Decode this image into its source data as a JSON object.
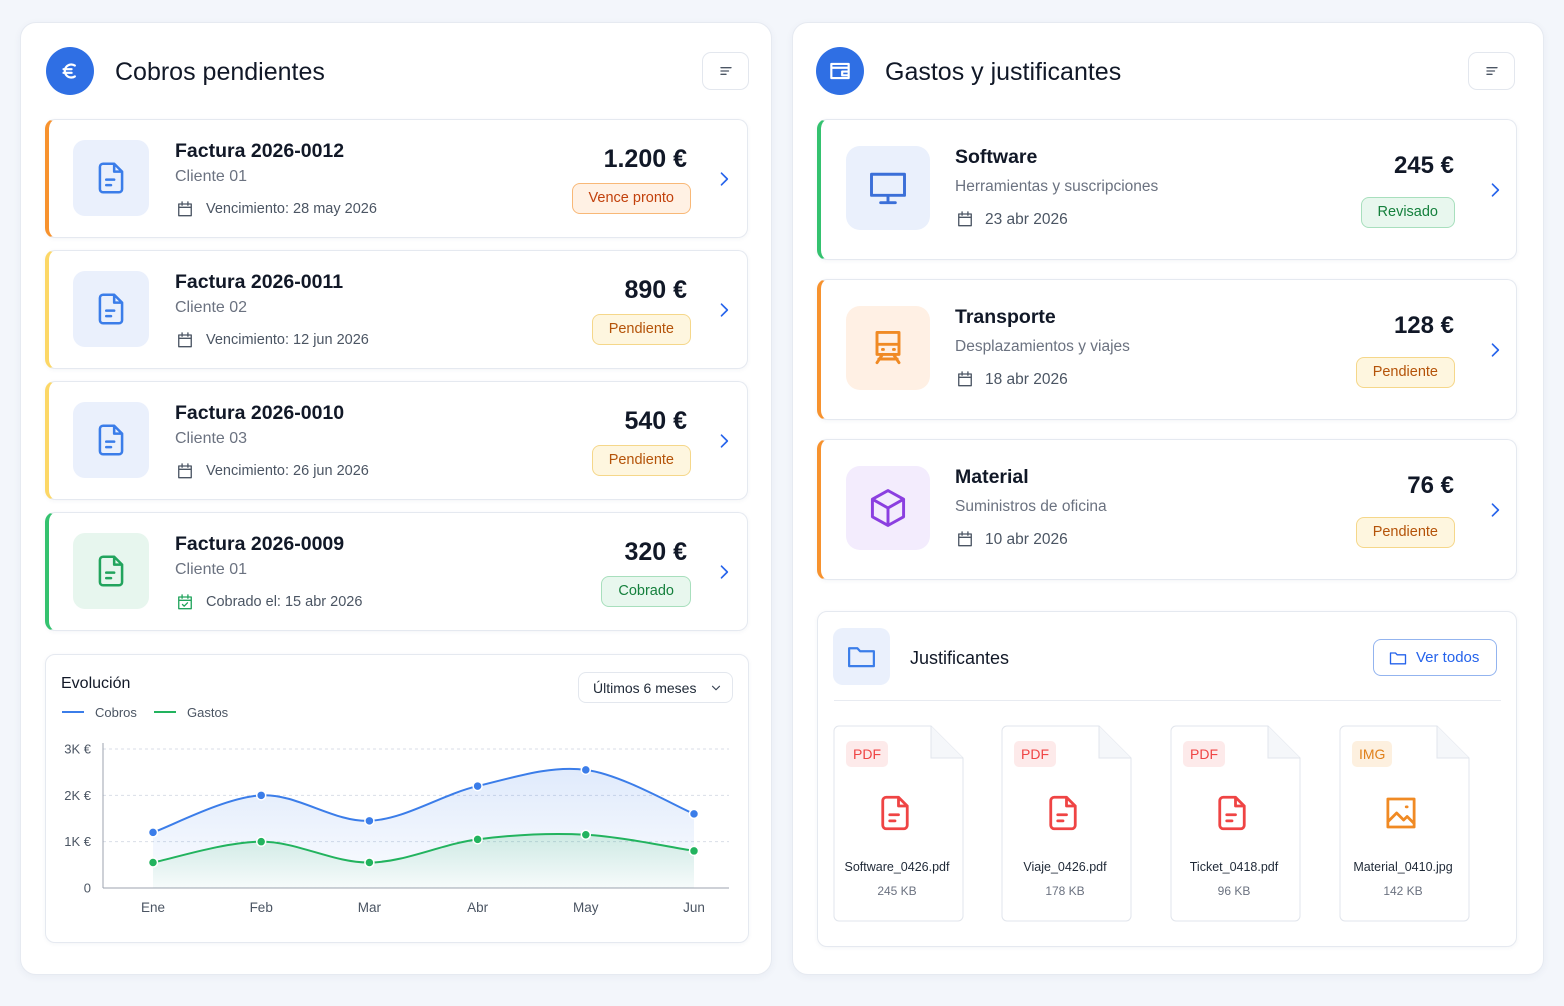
{
  "cobros": {
    "title": "Cobros pendientes",
    "items": [
      {
        "title": "Factura 2026-0012",
        "client": "Cliente 01",
        "date": "Vencimiento: 28 may 2026",
        "amount": "1.200 €",
        "status": "Vence pronto"
      },
      {
        "title": "Factura 2026-0011",
        "client": "Cliente 02",
        "date": "Vencimiento: 12 jun 2026",
        "amount": "890 €",
        "status": "Pendiente"
      },
      {
        "title": "Factura 2026-0010",
        "client": "Cliente 03",
        "date": "Vencimiento: 26 jun 2026",
        "amount": "540 €",
        "status": "Pendiente"
      },
      {
        "title": "Factura 2026-0009",
        "client": "Cliente 01",
        "date": "Cobrado el: 15 abr 2026",
        "amount": "320 €",
        "status": "Cobrado"
      }
    ]
  },
  "chart_data": {
    "type": "line",
    "title": "Evolución",
    "filter": "Últimos 6 meses",
    "categories": [
      "Ene",
      "Feb",
      "Mar",
      "Abr",
      "May",
      "Jun"
    ],
    "series": [
      {
        "name": "Cobros",
        "color": "#3b7de9",
        "values": [
          1200,
          2000,
          1450,
          2200,
          2550,
          1600
        ]
      },
      {
        "name": "Gastos",
        "color": "#22b35e",
        "values": [
          550,
          1000,
          550,
          1050,
          1150,
          800
        ]
      }
    ],
    "ylim": [
      0,
      3000
    ],
    "yticks": [
      0,
      {
        "value": 1000,
        "label": "1K €"
      },
      {
        "value": 2000,
        "label": "2K €"
      },
      {
        "value": 3000,
        "label": "3K €"
      }
    ],
    "grid": true
  },
  "gastos": {
    "title": "Gastos y justificantes",
    "items": [
      {
        "title": "Software",
        "subtitle": "Herramientas y suscripciones",
        "date": "23 abr 2026",
        "amount": "245 €",
        "status": "Revisado"
      },
      {
        "title": "Transporte",
        "subtitle": "Desplazamientos y viajes",
        "date": "18 abr 2026",
        "amount": "128 €",
        "status": "Pendiente"
      },
      {
        "title": "Material",
        "subtitle": "Suministros de oficina",
        "date": "10 abr 2026",
        "amount": "76 €",
        "status": "Pendiente"
      }
    ]
  },
  "justificantes": {
    "title": "Justificantes",
    "button": "Ver todos",
    "files": [
      {
        "type": "PDF",
        "name": "Software_0426.pdf",
        "size": "245 KB"
      },
      {
        "type": "PDF",
        "name": "Viaje_0426.pdf",
        "size": "178 KB"
      },
      {
        "type": "PDF",
        "name": "Ticket_0418.pdf",
        "size": "96 KB"
      },
      {
        "type": "IMG",
        "name": "Material_0410.jpg",
        "size": "142 KB"
      }
    ]
  }
}
